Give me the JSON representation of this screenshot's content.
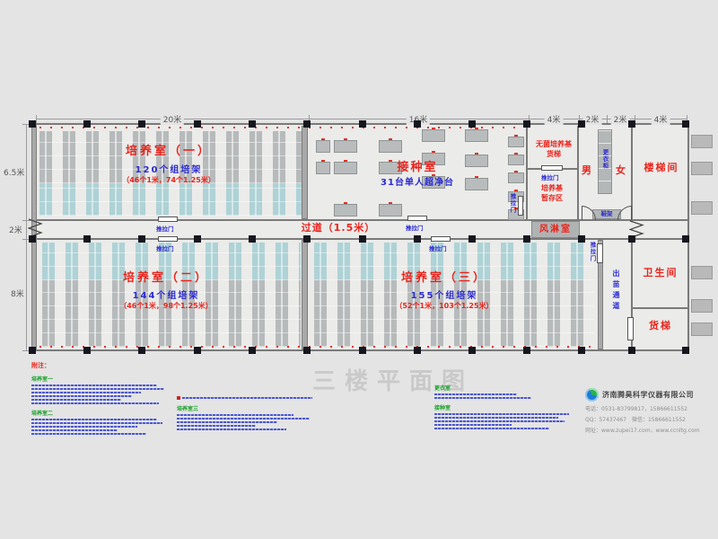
{
  "page": {
    "title": "三楼平面图"
  },
  "dimensions": {
    "top": [
      "20米",
      "16米",
      "4米",
      "2米",
      "2米",
      "4米"
    ],
    "left": [
      "6.5米",
      "2米",
      "8米"
    ]
  },
  "rooms": {
    "room1": {
      "name": "培养室（一）",
      "count": "120个组培架",
      "detail": "（46个1米，74个1.25米）"
    },
    "room2": {
      "name": "培养室（二）",
      "count": "144个组培架",
      "detail": "（46个1米，98个1.25米）"
    },
    "room3": {
      "name": "培养室（三）",
      "count": "155个组培架",
      "detail": "（52个1米，103个1.25米）"
    },
    "inoculation": {
      "name": "接种室",
      "equipment": "31台单人超净台"
    },
    "sterile_medium_elevator": {
      "line1": "无菌培养基",
      "line2": "货梯"
    },
    "medium_storage": {
      "line1": "培养基",
      "line2": "暂存区"
    },
    "corridor": "过道（1.5米）",
    "air_shower": "风淋室",
    "male": "男",
    "female": "女",
    "stairwell": "楼梯间",
    "locker": "更衣柜",
    "shoe_rack": "鞋架",
    "seedling_channel": "出苗通道",
    "toilet": "卫生间",
    "freight_elevator": "货梯",
    "sliding_door": "推拉门"
  },
  "notes": {
    "title": "附注：",
    "sections": [
      "培养室一",
      "培养室二",
      "培养室三",
      "更衣室",
      "接种室"
    ]
  },
  "company": {
    "name": "济南腾昊科学仪器有限公司",
    "phone": "电话：0531-83799817，15866611552",
    "qq": "QQ：57437467　微信：15866611552",
    "web": "网址：www.zupei17.com，www.ccnltg.com"
  },
  "colors": {
    "label_red": "#e8241c",
    "label_blue": "#2b2bd0",
    "note_green": "#18a028",
    "rack_gray": "#b7babb",
    "rack_blue": "#aed2d6",
    "column_black": "#16161e"
  }
}
